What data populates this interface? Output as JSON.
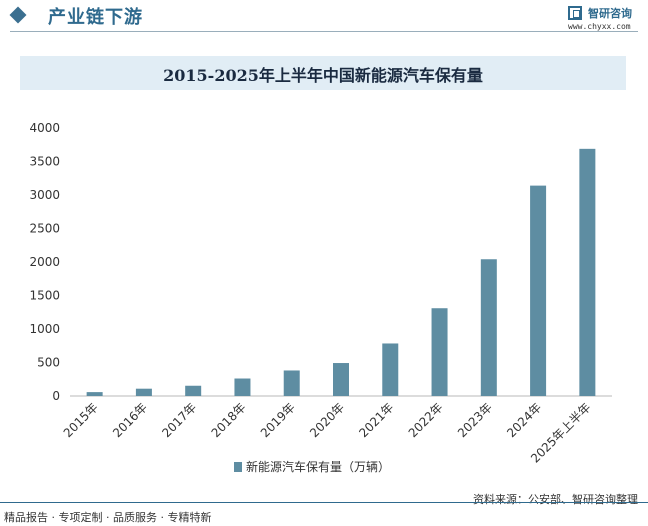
{
  "header": {
    "title": "产业链下游",
    "logo_name": "智研咨询",
    "logo_url": "www.chyxx.com"
  },
  "chart_data": {
    "type": "bar",
    "title": "2015-2025年上半年中国新能源汽车保有量",
    "categories": [
      "2015年",
      "2016年",
      "2017年",
      "2018年",
      "2019年",
      "2020年",
      "2021年",
      "2022年",
      "2023年",
      "2024年",
      "2025年上半年"
    ],
    "series": [
      {
        "name": "新能源汽车保有量（万辆）",
        "values": [
          58,
          109,
          153,
          261,
          381,
          492,
          784,
          1310,
          2041,
          3140,
          3689
        ],
        "color": "#5e8da2"
      }
    ],
    "yticks": [
      0,
      500,
      1000,
      1500,
      2000,
      2500,
      3000,
      3500,
      4000
    ],
    "ylim": [
      0,
      4000
    ],
    "grid": false,
    "legend_position": "bottom"
  },
  "footer": {
    "left": "精品报告 · 专项定制 · 品质服务 · 专精特新",
    "source": "资料来源：公安部、智研咨询整理"
  }
}
